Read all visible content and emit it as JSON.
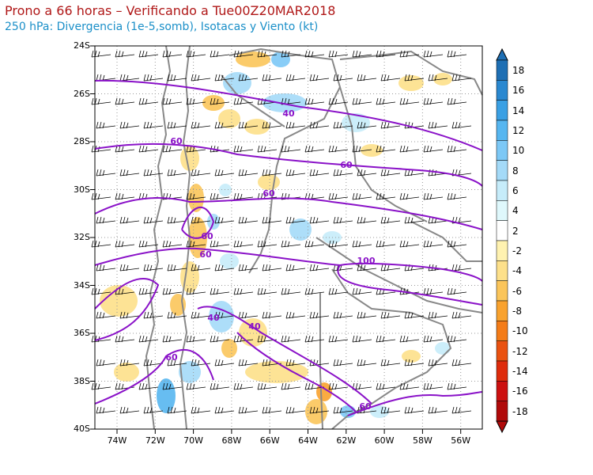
{
  "title": {
    "line1": "Prono a 66 horas – Verificando a Tue00Z20MAR2018",
    "line2": "250 hPa: Divergencia (1e-5,somb), Isotacas y Viento (kt)"
  },
  "map": {
    "lat_labels": [
      "24S",
      "26S",
      "28S",
      "30S",
      "32S",
      "34S",
      "36S",
      "38S",
      "40S"
    ],
    "lon_labels": [
      "74W",
      "72W",
      "70W",
      "68W",
      "66W",
      "64W",
      "62W",
      "60W",
      "58W",
      "56W"
    ],
    "isotach_labels": [
      "40",
      "60",
      "60",
      "60",
      "60",
      "60",
      "100",
      "40",
      "60",
      "60",
      "40"
    ]
  },
  "colorbar": {
    "labels": [
      "18",
      "16",
      "14",
      "12",
      "10",
      "8",
      "6",
      "4",
      "2",
      "-2",
      "-4",
      "-6",
      "-8",
      "-10",
      "-12",
      "-14",
      "-16",
      "-18"
    ],
    "colors": [
      "#1e6fb4",
      "#2a88d0",
      "#3aa0e4",
      "#56b6f0",
      "#7cc8f6",
      "#a4daf8",
      "#c6ecfa",
      "#dff8fc",
      "#ffffff",
      "#fff2b0",
      "#fde08a",
      "#fbc55a",
      "#f9a22e",
      "#f47c18",
      "#ea5210",
      "#de2c0c",
      "#cc1010",
      "#b00a0a"
    ]
  },
  "colors": {
    "isotach": "#8a12c8",
    "border": "#888888",
    "barb": "#000000"
  }
}
